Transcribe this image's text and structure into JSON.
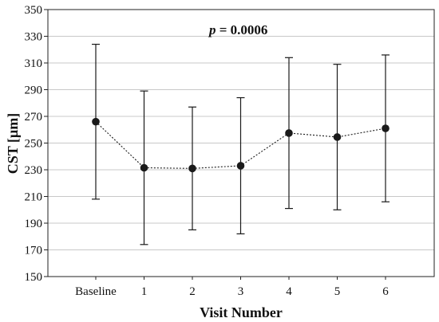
{
  "chart_data": {
    "type": "line",
    "title": "",
    "xlabel": "Visit Number",
    "ylabel": "CST [µm]",
    "categories": [
      "Baseline",
      "1",
      "2",
      "3",
      "4",
      "5",
      "6"
    ],
    "series": [
      {
        "values": [
          266,
          231.5,
          231,
          233,
          257.5,
          254.5,
          261
        ],
        "error_low": [
          208,
          174,
          185,
          182,
          201,
          200,
          206
        ],
        "error_high": [
          324,
          289,
          277,
          284,
          314,
          309,
          316
        ]
      }
    ],
    "y_ticks": [
      150,
      170,
      190,
      210,
      230,
      250,
      270,
      290,
      310,
      330,
      350
    ],
    "ylim": [
      150,
      350
    ],
    "grid": true,
    "line_style": "dotted",
    "marker": "filled-circle",
    "colors": {
      "series": "#1a1a1a",
      "grid": "#c8c8c8",
      "axis": "#222222"
    },
    "annotation": {
      "p_symbol": "p",
      "p_rest": " = 0.0006"
    }
  }
}
